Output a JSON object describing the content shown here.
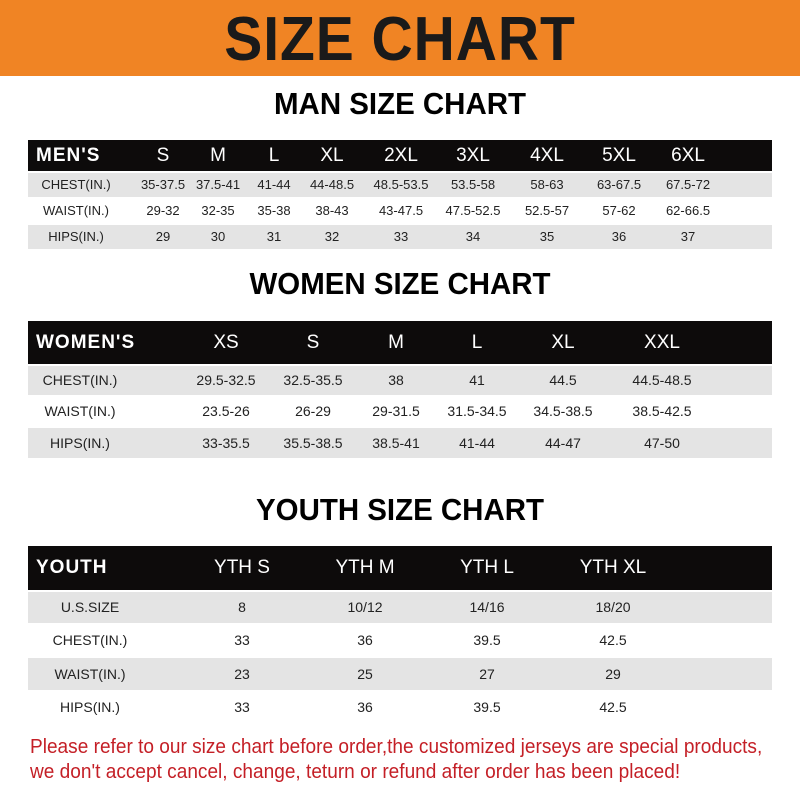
{
  "banner": {
    "title": "SIZE CHART",
    "color": "#f08424"
  },
  "men": {
    "title": "MAN SIZE CHART",
    "header": [
      "MEN'S",
      "S",
      "M",
      "L",
      "XL",
      "2XL",
      "3XL",
      "4XL",
      "5XL",
      "6XL"
    ],
    "rows": [
      [
        "CHEST(IN.)",
        "35-37.5",
        "37.5-41",
        "41-44",
        "44-48.5",
        "48.5-53.5",
        "53.5-58",
        "58-63",
        "63-67.5",
        "67.5-72"
      ],
      [
        "WAIST(IN.)",
        "29-32",
        "32-35",
        "35-38",
        "38-43",
        "43-47.5",
        "47.5-52.5",
        "52.5-57",
        "57-62",
        "62-66.5"
      ],
      [
        "HIPS(IN.)",
        "29",
        "30",
        "31",
        "32",
        "33",
        "34",
        "35",
        "36",
        "37"
      ]
    ]
  },
  "women": {
    "title": "WOMEN SIZE CHART",
    "header": [
      "WOMEN'S",
      "XS",
      "S",
      "M",
      "L",
      "XL",
      "XXL"
    ],
    "rows": [
      [
        "CHEST(IN.)",
        "29.5-32.5",
        "32.5-35.5",
        "38",
        "41",
        "44.5",
        "44.5-48.5"
      ],
      [
        "WAIST(IN.)",
        "23.5-26",
        "26-29",
        "29-31.5",
        "31.5-34.5",
        "34.5-38.5",
        "38.5-42.5"
      ],
      [
        "HIPS(IN.)",
        "33-35.5",
        "35.5-38.5",
        "38.5-41",
        "41-44",
        "44-47",
        "47-50"
      ]
    ]
  },
  "youth": {
    "title": "YOUTH SIZE CHART",
    "header": [
      "YOUTH",
      "YTH S",
      "YTH M",
      "YTH L",
      "YTH XL"
    ],
    "rows": [
      [
        "U.S.SIZE",
        "8",
        "10/12",
        "14/16",
        "18/20"
      ],
      [
        "CHEST(IN.)",
        "33",
        "36",
        "39.5",
        "42.5"
      ],
      [
        "WAIST(IN.)",
        "23",
        "25",
        "27",
        "29"
      ],
      [
        "HIPS(IN.)",
        "33",
        "36",
        "39.5",
        "42.5"
      ]
    ]
  },
  "footer": {
    "line1": "Please refer to our size chart before order,the customized jerseys are special products,",
    "line2": "we don't accept cancel, change, teturn or refund after order has been placed!"
  }
}
